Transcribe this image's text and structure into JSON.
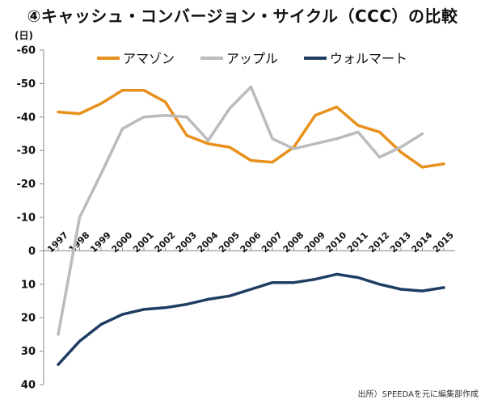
{
  "chart_data": {
    "type": "line",
    "title": "④キャッシュ・コンバージョン・サイクル（CCC）の比較",
    "ylabel": "(日)",
    "xlabel": "",
    "ylim": [
      -60,
      40
    ],
    "y_inverted": true,
    "y_ticks": [
      -60,
      -50,
      -40,
      -30,
      -20,
      -10,
      0,
      10,
      20,
      30,
      40
    ],
    "y_tick_labels": [
      "-60",
      "-50",
      "-40",
      "-30",
      "-20",
      "-10",
      "0",
      "10",
      "20",
      "30",
      "40"
    ],
    "categories": [
      "1997",
      "1998",
      "1999",
      "2000",
      "2001",
      "2002",
      "2003",
      "2004",
      "2005",
      "2006",
      "2007",
      "2008",
      "2009",
      "2010",
      "2011",
      "2012",
      "2013",
      "2014",
      "2015"
    ],
    "grid": false,
    "legend_position": "top",
    "series": [
      {
        "name": "アマゾン",
        "color": "#E8901C",
        "values": [
          -41.5,
          -41,
          -44,
          -48,
          -48,
          -44.5,
          -34.5,
          -32,
          -31,
          -27,
          -26.5,
          -31,
          -40.5,
          -43,
          -37.5,
          -35.5,
          -29.5,
          -25,
          -26
        ]
      },
      {
        "name": "アップル",
        "color": "#BBBBBB",
        "values": [
          25,
          -10,
          -23,
          -36.5,
          -40,
          -40.5,
          -40,
          -33,
          -42.5,
          -49,
          -33.5,
          -30.5,
          -32,
          -33.5,
          -35.5,
          -28,
          -31,
          -35,
          null
        ]
      },
      {
        "name": "ウォルマート",
        "color": "#1F3D63",
        "values": [
          34,
          27,
          22,
          19,
          17.5,
          17,
          16,
          14.5,
          13.5,
          11.5,
          9.5,
          9.5,
          8.5,
          7,
          8,
          10,
          11.5,
          12,
          11
        ]
      }
    ],
    "source": "出所）SPEEDAを元に編集部作成"
  }
}
